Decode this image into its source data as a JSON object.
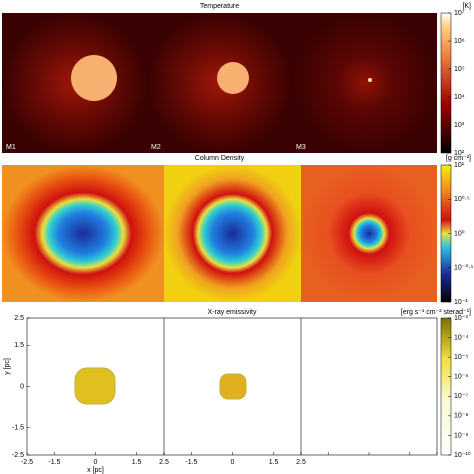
{
  "chart_data": [
    {
      "type": "image",
      "title": "Temperature",
      "unit": "[K]",
      "panel_labels": [
        "M1",
        "M2",
        "M3"
      ],
      "colorbar": {
        "log": true,
        "clim": [
          100,
          10000000
        ],
        "ticks": [
          {
            "value": 10000000,
            "label": "10⁷"
          },
          {
            "value": 1000000,
            "label": "10⁶"
          },
          {
            "value": 100000,
            "label": "10⁵"
          },
          {
            "value": 10000,
            "label": "10⁴"
          },
          {
            "value": 1000,
            "label": "10³"
          },
          {
            "value": 100,
            "label": "10²"
          }
        ]
      }
    },
    {
      "type": "image",
      "title": "Column Density",
      "unit": "[g cm⁻²]",
      "colorbar": {
        "log": true,
        "clim": [
          0.1,
          10
        ],
        "ticks": [
          {
            "value": 10,
            "label": "10¹"
          },
          {
            "value": 3.162,
            "label": "10⁰·⁵"
          },
          {
            "value": 1,
            "label": "10⁰"
          },
          {
            "value": 0.3162,
            "label": "10⁻⁰·⁵"
          },
          {
            "value": 0.1,
            "label": "10⁻¹"
          }
        ]
      }
    },
    {
      "type": "image",
      "title": "X-ray emissivity",
      "unit": "[erg s⁻¹ cm⁻² sterad⁻¹]",
      "xlabel": "x [pc]",
      "ylabel": "y [pc]",
      "xlim": [
        -2.5,
        2.5
      ],
      "ylim": [
        -2.5,
        2.5
      ],
      "xticks": [
        -2.5,
        -1.5,
        0,
        1.5,
        2.5
      ],
      "yticks": [
        -2.5,
        -1.5,
        0,
        1.5,
        2.5
      ],
      "colorbar": {
        "log": true,
        "clim": [
          1e-10,
          0.001
        ],
        "ticks": [
          {
            "value": 0.001,
            "label": "10⁻³"
          },
          {
            "value": 0.0001,
            "label": "10⁻⁴"
          },
          {
            "value": 1e-05,
            "label": "10⁻⁵"
          },
          {
            "value": 1e-06,
            "label": "10⁻⁶"
          },
          {
            "value": 1e-07,
            "label": "10⁻⁷"
          },
          {
            "value": 1e-08,
            "label": "10⁻⁸"
          },
          {
            "value": 1e-09,
            "label": "10⁻⁹"
          },
          {
            "value": 1e-10,
            "label": "10⁻¹⁰"
          }
        ]
      }
    }
  ]
}
